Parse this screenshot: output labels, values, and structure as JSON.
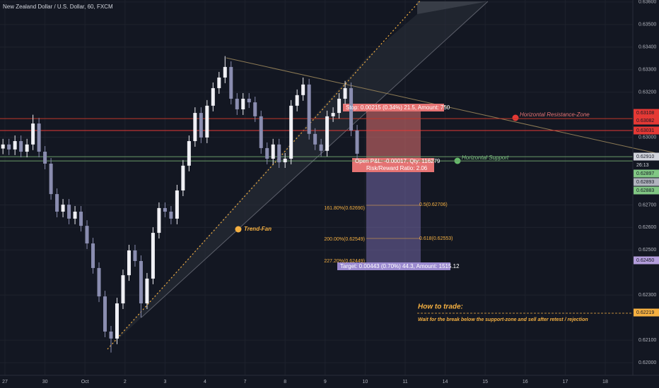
{
  "chart_data": {
    "type": "candlestick",
    "title": "New Zealand Dollar / U.S. Dollar, 60, FXCM",
    "up_color": "#f0f0f5",
    "down_color": "#8a8db0",
    "grid": true,
    "xlim": [
      -0.124,
      15.69
    ],
    "xticks": [
      {
        "value": 0,
        "label": "27"
      },
      {
        "value": 1,
        "label": "30"
      },
      {
        "value": 2,
        "label": "Oct"
      },
      {
        "value": 3,
        "label": "2"
      },
      {
        "value": 4,
        "label": "3"
      },
      {
        "value": 5,
        "label": "4"
      },
      {
        "value": 6,
        "label": "7"
      },
      {
        "value": 7,
        "label": "8"
      },
      {
        "value": 8,
        "label": "9"
      },
      {
        "value": 9,
        "label": "10"
      },
      {
        "value": 10,
        "label": "11"
      },
      {
        "value": 11,
        "label": "14"
      },
      {
        "value": 12,
        "label": "15"
      },
      {
        "value": 13,
        "label": "16"
      },
      {
        "value": 14,
        "label": "17"
      },
      {
        "value": 15,
        "label": "18"
      }
    ],
    "ylim": [
      0.61944,
      0.63609
    ],
    "yticks": [
      {
        "value": 0.636,
        "label": "0.63600"
      },
      {
        "value": 0.635,
        "label": "0.63500"
      },
      {
        "value": 0.634,
        "label": "0.63400"
      },
      {
        "value": 0.633,
        "label": "0.63300"
      },
      {
        "value": 0.632,
        "label": "0.63200"
      },
      {
        "value": 0.63,
        "label": "0.63000"
      },
      {
        "value": 0.627,
        "label": "0.62700"
      },
      {
        "value": 0.626,
        "label": "0.62600"
      },
      {
        "value": 0.625,
        "label": "0.62500"
      },
      {
        "value": 0.623,
        "label": "0.62300"
      },
      {
        "value": 0.621,
        "label": "0.62100"
      },
      {
        "value": 0.62,
        "label": "0.62000"
      }
    ],
    "x": [
      -0.05,
      0.1,
      0.25,
      0.4,
      0.55,
      0.7,
      0.85,
      1.0,
      1.15,
      1.3,
      1.45,
      1.6,
      1.75,
      1.9,
      2.05,
      2.2,
      2.35,
      2.5,
      2.65,
      2.8,
      2.95,
      3.1,
      3.25,
      3.4,
      3.55,
      3.7,
      3.85,
      4.0,
      4.15,
      4.3,
      4.45,
      4.6,
      4.75,
      4.9,
      5.05,
      5.2,
      5.35,
      5.5,
      5.65,
      5.8,
      5.95,
      6.1,
      6.25,
      6.4,
      6.55,
      6.7,
      6.85,
      7.0,
      7.15,
      7.3,
      7.45,
      7.6,
      7.75,
      7.9,
      8.05,
      8.2,
      8.35,
      8.5,
      8.65,
      8.8
    ],
    "open": [
      0.6295,
      0.62968,
      0.62946,
      0.62983,
      0.62936,
      0.62968,
      0.63061,
      0.62936,
      0.62883,
      0.62748,
      0.6267,
      0.62701,
      0.62639,
      0.6267,
      0.62607,
      0.62529,
      0.6242,
      0.62294,
      0.62138,
      0.62107,
      0.62263,
      0.62388,
      0.62498,
      0.62451,
      0.62263,
      0.62373,
      0.62576,
      0.62686,
      0.6267,
      0.62639,
      0.62764,
      0.62874,
      0.62983,
      0.63108,
      0.62999,
      0.6314,
      0.63218,
      0.63265,
      0.63312,
      0.63171,
      0.63124,
      0.63171,
      0.63155,
      0.63093,
      0.62952,
      0.62905,
      0.62968,
      0.62889,
      0.62905,
      0.6314,
      0.63187,
      0.63234,
      0.63015,
      0.62968,
      0.6294,
      0.63093,
      0.63108,
      0.63171,
      0.63218,
      0.6303
    ],
    "high": [
      0.62993,
      0.62993,
      0.63008,
      0.63008,
      0.62993,
      0.631,
      0.63086,
      0.62961,
      0.62908,
      0.62773,
      0.62726,
      0.62726,
      0.62695,
      0.62695,
      0.62632,
      0.62554,
      0.62445,
      0.62319,
      0.62163,
      0.62288,
      0.62413,
      0.62523,
      0.62523,
      0.62476,
      0.62398,
      0.62601,
      0.62711,
      0.62711,
      0.62695,
      0.62789,
      0.62899,
      0.63008,
      0.63133,
      0.63133,
      0.63165,
      0.63243,
      0.6329,
      0.6336,
      0.63337,
      0.63196,
      0.63196,
      0.63196,
      0.6318,
      0.63118,
      0.62977,
      0.62993,
      0.62993,
      0.6293,
      0.63165,
      0.63212,
      0.63265,
      0.63259,
      0.6304,
      0.62993,
      0.63118,
      0.63133,
      0.63196,
      0.6325,
      0.63243,
      0.63055
    ],
    "low": [
      0.62925,
      0.62921,
      0.62921,
      0.62911,
      0.62911,
      0.62943,
      0.62911,
      0.62858,
      0.62723,
      0.62645,
      0.62645,
      0.62614,
      0.62614,
      0.62582,
      0.62504,
      0.62395,
      0.62269,
      0.62113,
      0.62045,
      0.62082,
      0.62238,
      0.62363,
      0.62426,
      0.622,
      0.62238,
      0.62348,
      0.62551,
      0.62645,
      0.62614,
      0.62614,
      0.62739,
      0.62849,
      0.62958,
      0.62974,
      0.62974,
      0.63115,
      0.63193,
      0.6324,
      0.63146,
      0.63099,
      0.63099,
      0.6313,
      0.63068,
      0.62927,
      0.6288,
      0.6288,
      0.62864,
      0.62864,
      0.6288,
      0.63115,
      0.63162,
      0.6299,
      0.62943,
      0.62915,
      0.62915,
      0.63068,
      0.63083,
      0.63146,
      0.63005,
      0.62902
    ],
    "close": [
      0.62968,
      0.62946,
      0.62983,
      0.62936,
      0.62968,
      0.63061,
      0.62936,
      0.62883,
      0.62748,
      0.6267,
      0.62701,
      0.62639,
      0.6267,
      0.62607,
      0.62529,
      0.6242,
      0.62294,
      0.62138,
      0.62107,
      0.62263,
      0.62388,
      0.62498,
      0.62451,
      0.62263,
      0.62373,
      0.62576,
      0.62686,
      0.6267,
      0.62639,
      0.62764,
      0.62874,
      0.62983,
      0.63108,
      0.62999,
      0.6314,
      0.63218,
      0.63265,
      0.63312,
      0.63171,
      0.63124,
      0.63171,
      0.63155,
      0.63093,
      0.62952,
      0.62905,
      0.62968,
      0.62889,
      0.62905,
      0.6314,
      0.63187,
      0.63234,
      0.63015,
      0.62968,
      0.6294,
      0.63093,
      0.63108,
      0.63171,
      0.63218,
      0.6303,
      0.62927
    ],
    "horizontal_lines": [
      {
        "value": 0.63083,
        "color": "#c0392b"
      },
      {
        "value": 0.6303,
        "color": "#e53935"
      },
      {
        "value": 0.62914,
        "color": "#6a9b6a"
      },
      {
        "value": 0.62895,
        "color": "#6a9b6a"
      }
    ],
    "price_tags": [
      {
        "label": "0.63108",
        "color": "#e53935"
      },
      {
        "label": "0.63082",
        "color": "#e53935"
      },
      {
        "label": "0.63031",
        "color": "#e53935"
      },
      {
        "label": "0.62910",
        "color": "#d1d4dc"
      },
      {
        "label": "26:13",
        "color": "#131722"
      },
      {
        "label": "0.62897",
        "color": "#81c784"
      },
      {
        "label": "0.62893",
        "color": "#b0b3bd"
      },
      {
        "label": "0.62883",
        "color": "#81c784"
      },
      {
        "label": "0.62450",
        "color": "#b39ddb"
      },
      {
        "label": "0.62219",
        "color": "#f5b041"
      }
    ],
    "annotations": {
      "resistance": "Horizontal Resistance-Zone",
      "support": "Horizontal Support",
      "fan": "Trend-Fan",
      "how_title": "How to trade:",
      "how_text": "Wait for the break below the support-zone and sell after retest / rejection"
    },
    "position": {
      "stop": "Stop: 0.00215 (0.34%) 21.5, Amount: 750",
      "pnl": "Open P&L: -0.00017, Qty: 116279",
      "rr": "Risk/Reward Ratio: 2.06",
      "target": "Target: 0.00443 (0.70%) 44.3, Amount: 1515.12"
    },
    "fib_labels": [
      "161.80%(0.62690)",
      "200.00%(0.62549)",
      "227.20%(0.62449)",
      "0.5(0.62706)",
      "0.618(0.62553)"
    ]
  }
}
